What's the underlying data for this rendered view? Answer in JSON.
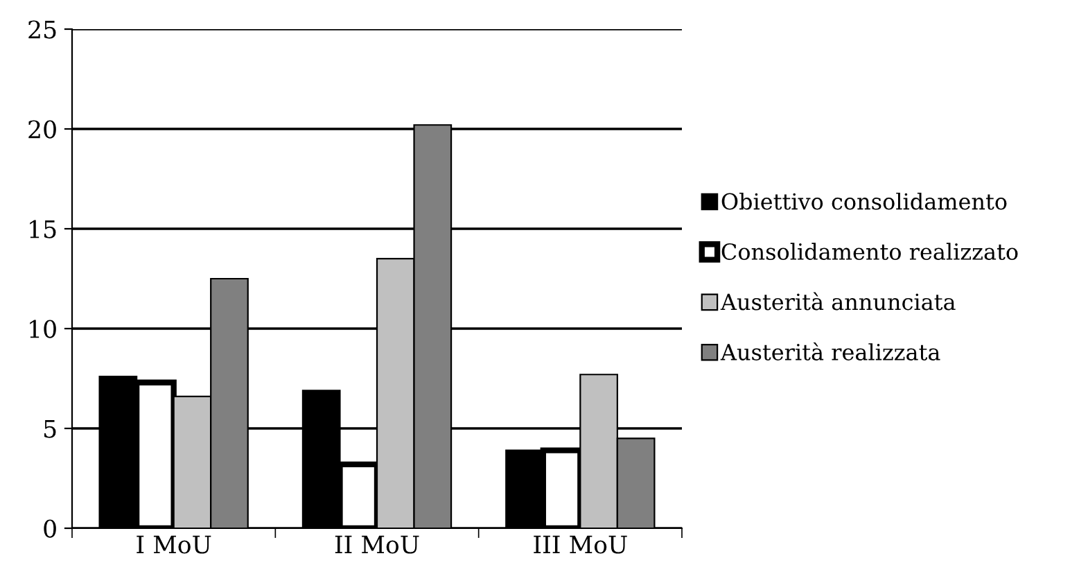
{
  "chart_data": {
    "type": "bar",
    "categories": [
      "I MoU",
      "II MoU",
      "III MoU"
    ],
    "series": [
      {
        "name": "Obiettivo consolidamento",
        "color": "#000000",
        "values": [
          7.6,
          6.9,
          3.9
        ]
      },
      {
        "name": "Consolidamento realizzato",
        "color": "#ffffff",
        "values": [
          7.3,
          3.2,
          3.9
        ]
      },
      {
        "name": "Austerità annunciata",
        "color": "#c0c0c0",
        "values": [
          6.6,
          13.5,
          7.7
        ]
      },
      {
        "name": "Austerità realizzata",
        "color": "#808080",
        "values": [
          12.5,
          20.2,
          4.5
        ]
      }
    ],
    "ylim": [
      0,
      25
    ],
    "yticks": [
      0,
      5,
      10,
      15,
      20,
      25
    ],
    "grid": "y",
    "legend": "right"
  }
}
